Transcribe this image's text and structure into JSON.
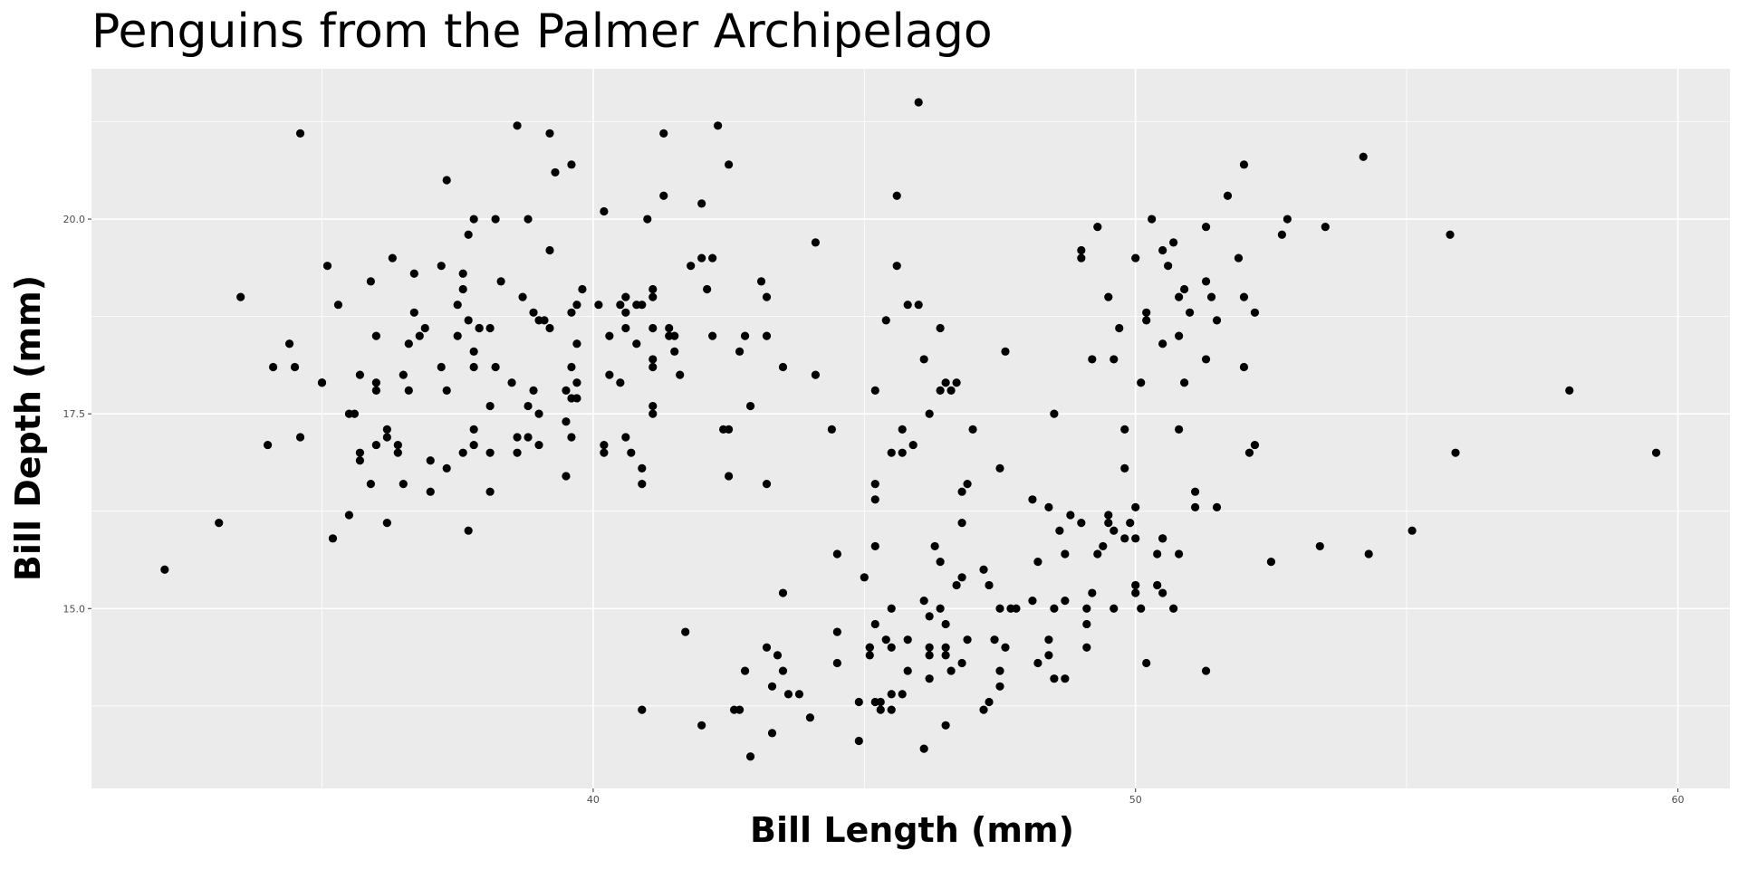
{
  "chart_data": {
    "type": "scatter",
    "title": "Penguins from the Palmer Archipelago",
    "x_label": "Bill Length (mm)",
    "y_label": "Bill Depth (mm)",
    "color": "#000000",
    "grid": true,
    "xlim": [
      30.75,
      60.96
    ],
    "ylim": [
      12.69,
      21.93
    ],
    "xticks": [
      40,
      50,
      60
    ],
    "yticks": [
      {
        "value": 15,
        "label": "15.0"
      },
      17.5,
      {
        "value": 20,
        "label": "20.0"
      }
    ],
    "xminorticks": [
      35,
      45,
      55
    ],
    "yminorticks": [
      13.75,
      16.25,
      18.75,
      21.25
    ],
    "x": [
      39.1,
      39.5,
      40.3,
      36.7,
      39.3,
      38.9,
      39.2,
      34.1,
      42,
      37.8,
      37.8,
      41.1,
      38.6,
      34.6,
      36.6,
      38.7,
      42.5,
      34.4,
      46,
      37.8,
      37.7,
      35.9,
      38.2,
      38.8,
      35.3,
      40.6,
      40.5,
      37.9,
      40.5,
      39.5,
      37.2,
      39.5,
      40.9,
      36.4,
      39.2,
      38.8,
      42.2,
      37.6,
      39.8,
      36.5,
      40.8,
      36,
      44.1,
      37,
      39.6,
      41.1,
      37.5,
      36,
      42.3,
      39.6,
      40.1,
      35,
      42,
      34.5,
      41.4,
      39,
      40.6,
      36.5,
      37.6,
      35.7,
      41.3,
      37.6,
      41.1,
      36.4,
      41.6,
      35.5,
      41.1,
      35.9,
      41.8,
      33.5,
      39.7,
      39.6,
      45.8,
      35.5,
      42.8,
      40.9,
      37.2,
      36.2,
      42.1,
      34.6,
      42.9,
      36.7,
      35.1,
      37.3,
      41.3,
      36.3,
      36.9,
      38.3,
      38.9,
      35.7,
      41.1,
      34,
      39.6,
      36.2,
      40.8,
      38.1,
      40.3,
      33.1,
      43.2,
      35,
      41,
      37.7,
      37.8,
      37.9,
      39.7,
      38.6,
      38.2,
      38.1,
      43.2,
      38.1,
      45.6,
      39.7,
      42.2,
      39.6,
      42.7,
      38.6,
      37.3,
      35.7,
      41.1,
      36.2,
      37.7,
      40.2,
      41.4,
      35.2,
      40.6,
      38.8,
      41.5,
      39,
      44.1,
      38.5,
      43.1,
      36.8,
      37.5,
      38.1,
      41.1,
      35.6,
      40.2,
      37,
      39.7,
      40.2,
      40.6,
      32.1,
      40.7,
      37.3,
      39,
      39.2,
      36.6,
      36,
      37.8,
      36,
      41.5,
      46.1,
      50,
      48.7,
      50,
      47.6,
      46.5,
      45.4,
      46.7,
      43.3,
      46.8,
      40.9,
      49,
      45.5,
      48.4,
      45.8,
      49.3,
      42,
      49.2,
      46.2,
      48.7,
      50.2,
      45.1,
      46.5,
      46.3,
      42.9,
      46.1,
      44.5,
      47.8,
      48.2,
      50,
      47.3,
      42.8,
      45.1,
      59.6,
      49.1,
      48.4,
      42.6,
      44.4,
      44,
      48.7,
      42.7,
      49.6,
      45.3,
      49.6,
      50.5,
      43.6,
      45.5,
      50.5,
      44.9,
      45.2,
      46.6,
      48.5,
      45.1,
      50.1,
      46.5,
      45,
      43.8,
      45.5,
      43.2,
      50.4,
      45.3,
      46.2,
      45.7,
      54.3,
      45.8,
      49.8,
      46.2,
      49.5,
      43.5,
      50.7,
      47.7,
      46.4,
      48.2,
      46.5,
      46.4,
      48.6,
      47.5,
      51.1,
      45.2,
      45.2,
      49.1,
      52.5,
      47.4,
      50,
      44.9,
      50.8,
      43.4,
      51.3,
      47.5,
      52.1,
      47.5,
      52.2,
      45.5,
      49.5,
      44.5,
      50.8,
      49.4,
      46.9,
      48.4,
      51.1,
      48.5,
      55.9,
      47.2,
      49.1,
      47.3,
      46.8,
      41.7,
      53.4,
      43.3,
      48.1,
      50.5,
      49.8,
      43.5,
      51.5,
      46.2,
      55.1,
      44.5,
      48.8,
      47.2,
      46.8,
      50.4,
      45.2,
      49.9,
      46.5,
      50,
      51.3,
      45.4,
      52.7,
      45.2,
      46.1,
      51.3,
      46,
      51.3,
      46.6,
      51.7,
      47,
      52,
      45.9,
      50.5,
      50.3,
      58,
      46.4,
      49.2,
      42.4,
      48.5,
      43.2,
      50.6,
      46.7,
      52,
      50.5,
      49.5,
      46.4,
      52.8,
      40.9,
      54.2,
      42.5,
      51,
      49.7,
      47.5,
      47.6,
      52,
      46.9,
      53.5,
      49,
      46.2,
      50.9,
      45.5,
      50.9,
      50.8,
      50.1,
      49,
      51.5,
      49.8,
      48.1,
      51.4,
      45.7,
      50.7,
      42.5,
      52.2,
      45.2,
      49.3,
      50.2,
      45.6,
      51.9,
      46.8,
      45.7,
      55.8,
      43.5,
      49.6,
      50.8,
      50.2
    ],
    "values": [
      18.7,
      17.4,
      18,
      19.3,
      20.6,
      17.8,
      19.6,
      18.1,
      20.2,
      17.1,
      17.3,
      17.6,
      21.2,
      21.1,
      17.8,
      19,
      20.7,
      18.4,
      21.5,
      18.3,
      18.7,
      19.2,
      18.1,
      17.2,
      18.9,
      18.6,
      17.9,
      18.6,
      18.9,
      16.7,
      18.1,
      17.8,
      18.9,
      17,
      21.1,
      20,
      18.5,
      19.3,
      19.1,
      18,
      18.4,
      18.5,
      19.7,
      16.9,
      18.8,
      19,
      18.9,
      17.9,
      21.2,
      17.7,
      18.9,
      17.9,
      19.5,
      18.1,
      18.6,
      17.5,
      18.8,
      16.6,
      19.1,
      16.9,
      21.1,
      17,
      18.2,
      17.1,
      18,
      16.2,
      19.1,
      16.6,
      19.4,
      19,
      18.4,
      17.2,
      18.9,
      17.5,
      18.5,
      16.8,
      19.4,
      16.1,
      19.1,
      17.2,
      17.6,
      18.8,
      19.4,
      17.8,
      20.3,
      19.5,
      18.6,
      19.2,
      18.8,
      18,
      18.1,
      17.1,
      18.1,
      17.3,
      18.9,
      18.6,
      18.5,
      16.1,
      18.5,
      17.9,
      20,
      16,
      20,
      18.6,
      18.9,
      17.2,
      20,
      17,
      19,
      16.5,
      20.3,
      17.7,
      19.5,
      20.7,
      18.3,
      17,
      20.5,
      17,
      18.6,
      17.2,
      19.8,
      17,
      18.5,
      15.9,
      19,
      17.6,
      18.3,
      17.1,
      18,
      17.9,
      19.2,
      18.5,
      18.5,
      17.6,
      17.5,
      17.5,
      20.1,
      16.5,
      17.9,
      17.1,
      17.2,
      15.5,
      17,
      16.8,
      18.7,
      18.6,
      18.4,
      17.8,
      18.1,
      17.1,
      18.5,
      13.2,
      16.3,
      14.1,
      15.2,
      14.5,
      13.5,
      14.6,
      15.3,
      13.4,
      15.4,
      13.7,
      16.1,
      13.7,
      14.6,
      14.6,
      15.7,
      13.5,
      15.2,
      14.5,
      15.1,
      14.3,
      14.5,
      14.5,
      15.8,
      13.1,
      15.1,
      14.3,
      15,
      14.3,
      15.3,
      15.3,
      14.2,
      14.5,
      17,
      14.8,
      16.3,
      13.7,
      17.3,
      13.6,
      15.7,
      13.7,
      16,
      13.7,
      15,
      15.9,
      13.9,
      13.9,
      15.9,
      13.3,
      15.8,
      14.2,
      14.1,
      14.4,
      15,
      14.4,
      15.4,
      13.9,
      15,
      14.5,
      15.3,
      13.8,
      14.9,
      13.9,
      15.7,
      14.2,
      16.8,
      14.4,
      16.2,
      14.2,
      15,
      15,
      15.6,
      15.6,
      14.8,
      15,
      16,
      14.2,
      16.3,
      13.8,
      16.4,
      14.5,
      15.6,
      14.6,
      15.9,
      13.8,
      17.3,
      14.4,
      14.2,
      14,
      17,
      15,
      17.1,
      14.5,
      16.1,
      14.7,
      15.7,
      15.8,
      14.6,
      14.4,
      16.5,
      15,
      17,
      15.5,
      15,
      13.8,
      16.1,
      14.7,
      15.8,
      14,
      15.1,
      15.2,
      15.9,
      15.2,
      16.3,
      14.1,
      16,
      15.7,
      16.2,
      13.7,
      14.3,
      15.7,
      14.8,
      16.1,
      17.9,
      19.5,
      19.2,
      18.7,
      19.8,
      17.8,
      18.2,
      18.2,
      18.9,
      19.9,
      17.8,
      20.3,
      17.3,
      18.1,
      17.1,
      19.6,
      20,
      17.8,
      18.6,
      18.2,
      17.3,
      17.5,
      16.6,
      19.4,
      17.9,
      19,
      18.4,
      19,
      17.8,
      20,
      16.6,
      20.8,
      16.7,
      18.8,
      18.6,
      16.8,
      18.3,
      20.7,
      16.6,
      19.9,
      19.5,
      17.5,
      19.1,
      17,
      17.9,
      18.5,
      17.9,
      19.6,
      18.7,
      17.3,
      16.4,
      19,
      17.3,
      19.7,
      17.3,
      18.8,
      16.6,
      19.9,
      18.8,
      19.4,
      19.5,
      16.5,
      17,
      19.8,
      18.1,
      18.2,
      19,
      18.7
    ]
  }
}
